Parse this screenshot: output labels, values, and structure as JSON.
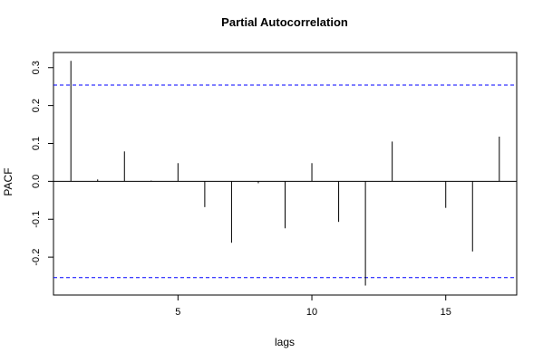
{
  "chart_data": {
    "type": "bar",
    "title": "Partial Autocorrelation",
    "xlabel": "lags",
    "ylabel": "PACF",
    "x": [
      1,
      2,
      3,
      4,
      5,
      6,
      7,
      8,
      9,
      10,
      11,
      12,
      13,
      14,
      15,
      16,
      17
    ],
    "values": [
      0.318,
      0.005,
      0.079,
      0.002,
      0.048,
      -0.068,
      -0.162,
      -0.005,
      -0.124,
      0.048,
      -0.107,
      -0.275,
      0.105,
      0.001,
      -0.07,
      -0.185,
      0.118
    ],
    "confidence_bounds": [
      0.254,
      -0.254
    ],
    "xlim": [
      0.35,
      17.65
    ],
    "ylim": [
      -0.3,
      0.34
    ],
    "xticks": [
      5,
      10,
      15
    ],
    "yticks": [
      -0.2,
      -0.1,
      0.0,
      0.1,
      0.2,
      0.3
    ],
    "ytick_labels": [
      "-0.2",
      "-0.1",
      "0.0",
      "0.1",
      "0.2",
      "0.3"
    ],
    "bound_color": "#0000ff",
    "grid": false
  }
}
